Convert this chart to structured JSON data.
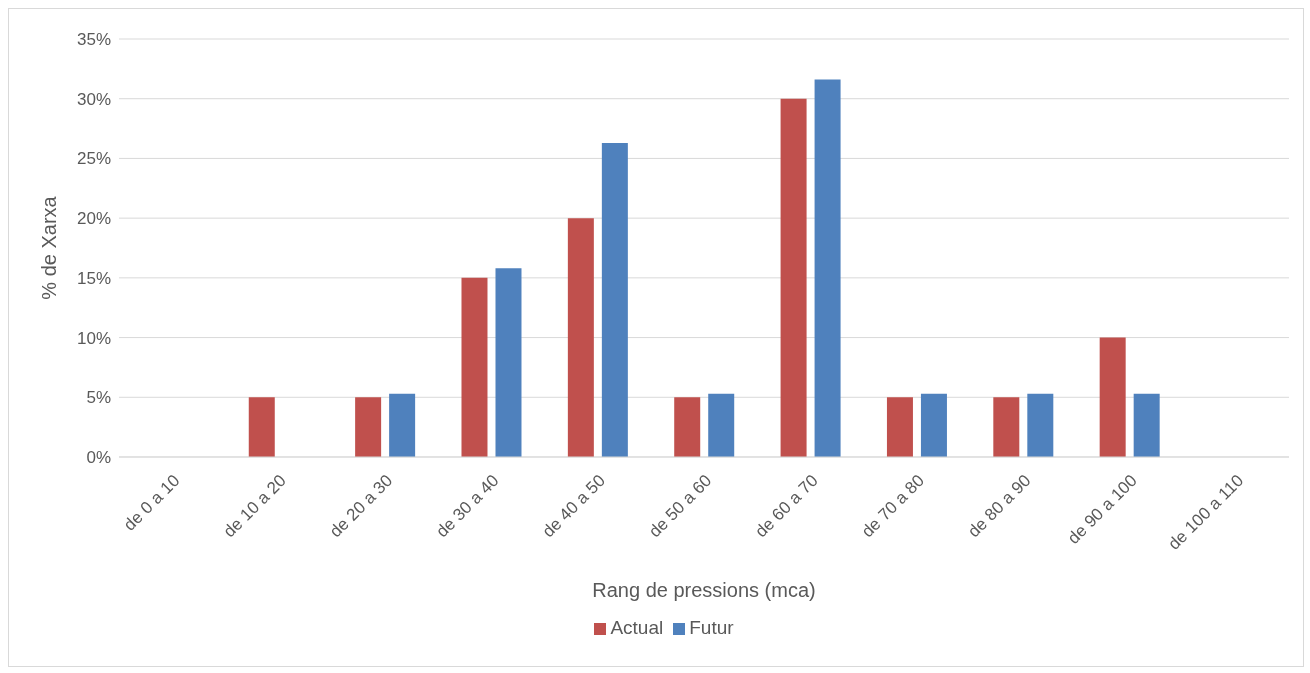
{
  "chart_data": {
    "type": "bar",
    "xlabel": "Rang de pressions (mca)",
    "ylabel": "% de Xarxa",
    "categories": [
      "de 0 a 10",
      "de 10 a 20",
      "de 20 a 30",
      "de 30 a 40",
      "de 40 a 50",
      "de 50 a 60",
      "de 60 a 70",
      "de 70 a 80",
      "de 80 a 90",
      "de 90 a 100",
      "de 100 a 110"
    ],
    "series": [
      {
        "name": "Actual",
        "color": "#c0504d",
        "values": [
          0,
          5,
          5,
          15,
          20,
          5,
          30,
          5,
          5,
          10,
          0
        ]
      },
      {
        "name": "Futur",
        "color": "#4f81bd",
        "values": [
          0,
          0,
          5.3,
          15.8,
          26.3,
          5.3,
          31.6,
          5.3,
          5.3,
          5.3,
          0
        ]
      }
    ],
    "ylim": [
      0,
      35
    ],
    "yticks": [
      {
        "value": 0,
        "label": "0%"
      },
      {
        "value": 5,
        "label": "5%"
      },
      {
        "value": 10,
        "label": "10%"
      },
      {
        "value": 15,
        "label": "15%"
      },
      {
        "value": 20,
        "label": "20%"
      },
      {
        "value": 25,
        "label": "25%"
      },
      {
        "value": 30,
        "label": "30%"
      },
      {
        "value": 35,
        "label": "35%"
      }
    ],
    "grid": "y",
    "legend": "bottom"
  }
}
